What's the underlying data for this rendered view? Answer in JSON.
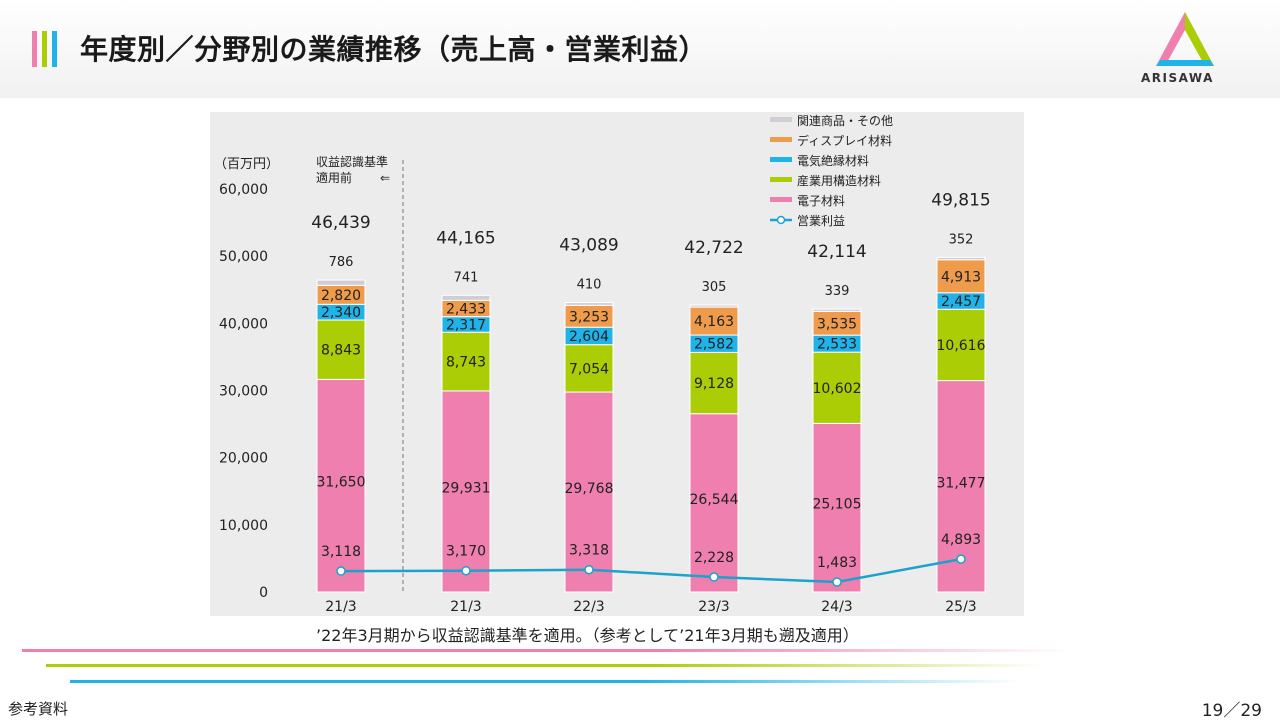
{
  "title": "年度別／分野別の業績推移（売上高・営業利益）",
  "logo_text": "ARISAWA",
  "footnote": "’22年3月期から収益認識基準を適用。（参考として’21年3月期も遡及適用）",
  "reference_label": "参考資料",
  "page_number": "19／29",
  "colors": {
    "electronic": "#ee7fae",
    "industrial": "#aacd06",
    "insulation": "#20b3ea",
    "display": "#ee9b4c",
    "related": "#d2cdd4",
    "profit": "#1aa3cc"
  },
  "chart_data": {
    "type": "bar",
    "stacked": true,
    "unit_label": "（百万円）",
    "note_label_line1": "収益認識基準",
    "note_label_line2": "適用前",
    "note_arrow": "⇐",
    "categories": [
      "21/3",
      "21/3",
      "22/3",
      "23/3",
      "24/3",
      "25/3"
    ],
    "ylim": [
      0,
      60000
    ],
    "y_ticks": [
      "0",
      "10,000",
      "20,000",
      "30,000",
      "40,000",
      "50,000",
      "60,000"
    ],
    "y_tick_values": [
      0,
      10000,
      20000,
      30000,
      40000,
      50000,
      60000
    ],
    "series": [
      {
        "name": "電子材料",
        "key": "electronic",
        "values": [
          31650,
          29931,
          29768,
          26544,
          25105,
          31477
        ],
        "labels": [
          "31,650",
          "29,931",
          "29,768",
          "26,544",
          "25,105",
          "31,477"
        ]
      },
      {
        "name": "産業用構造材料",
        "key": "industrial",
        "values": [
          8843,
          8743,
          7054,
          9128,
          10602,
          10616
        ],
        "labels": [
          "8,843",
          "8,743",
          "7,054",
          "9,128",
          "10,602",
          "10,616"
        ]
      },
      {
        "name": "電気絶縁材料",
        "key": "insulation",
        "values": [
          2340,
          2317,
          2604,
          2582,
          2533,
          2457
        ],
        "labels": [
          "2,340",
          "2,317",
          "2,604",
          "2,582",
          "2,533",
          "2,457"
        ]
      },
      {
        "name": "ディスプレイ材料",
        "key": "display",
        "values": [
          2820,
          2433,
          3253,
          4163,
          3535,
          4913
        ],
        "labels": [
          "2,820",
          "2,433",
          "3,253",
          "4,163",
          "3,535",
          "4,913"
        ]
      },
      {
        "name": "関連商品・その他",
        "key": "related",
        "values": [
          786,
          741,
          410,
          305,
          339,
          352
        ],
        "labels": [
          "786",
          "741",
          "410",
          "305",
          "339",
          "352"
        ]
      }
    ],
    "totals": [
      46439,
      44165,
      43089,
      42722,
      42114,
      49815
    ],
    "total_labels": [
      "46,439",
      "44,165",
      "43,089",
      "42,722",
      "42,114",
      "49,815"
    ],
    "line_series": {
      "name": "営業利益",
      "key": "profit",
      "values": [
        3118,
        3170,
        3318,
        2228,
        1483,
        4893
      ],
      "labels": [
        "3,118",
        "3,170",
        "3,318",
        "2,228",
        "1,483",
        "4,893"
      ]
    },
    "legend": [
      "関連商品・その他",
      "ディスプレイ材料",
      "電気絶縁材料",
      "産業用構造材料",
      "電子材料",
      "営業利益"
    ],
    "legend_position": "top-right",
    "grid": false
  }
}
